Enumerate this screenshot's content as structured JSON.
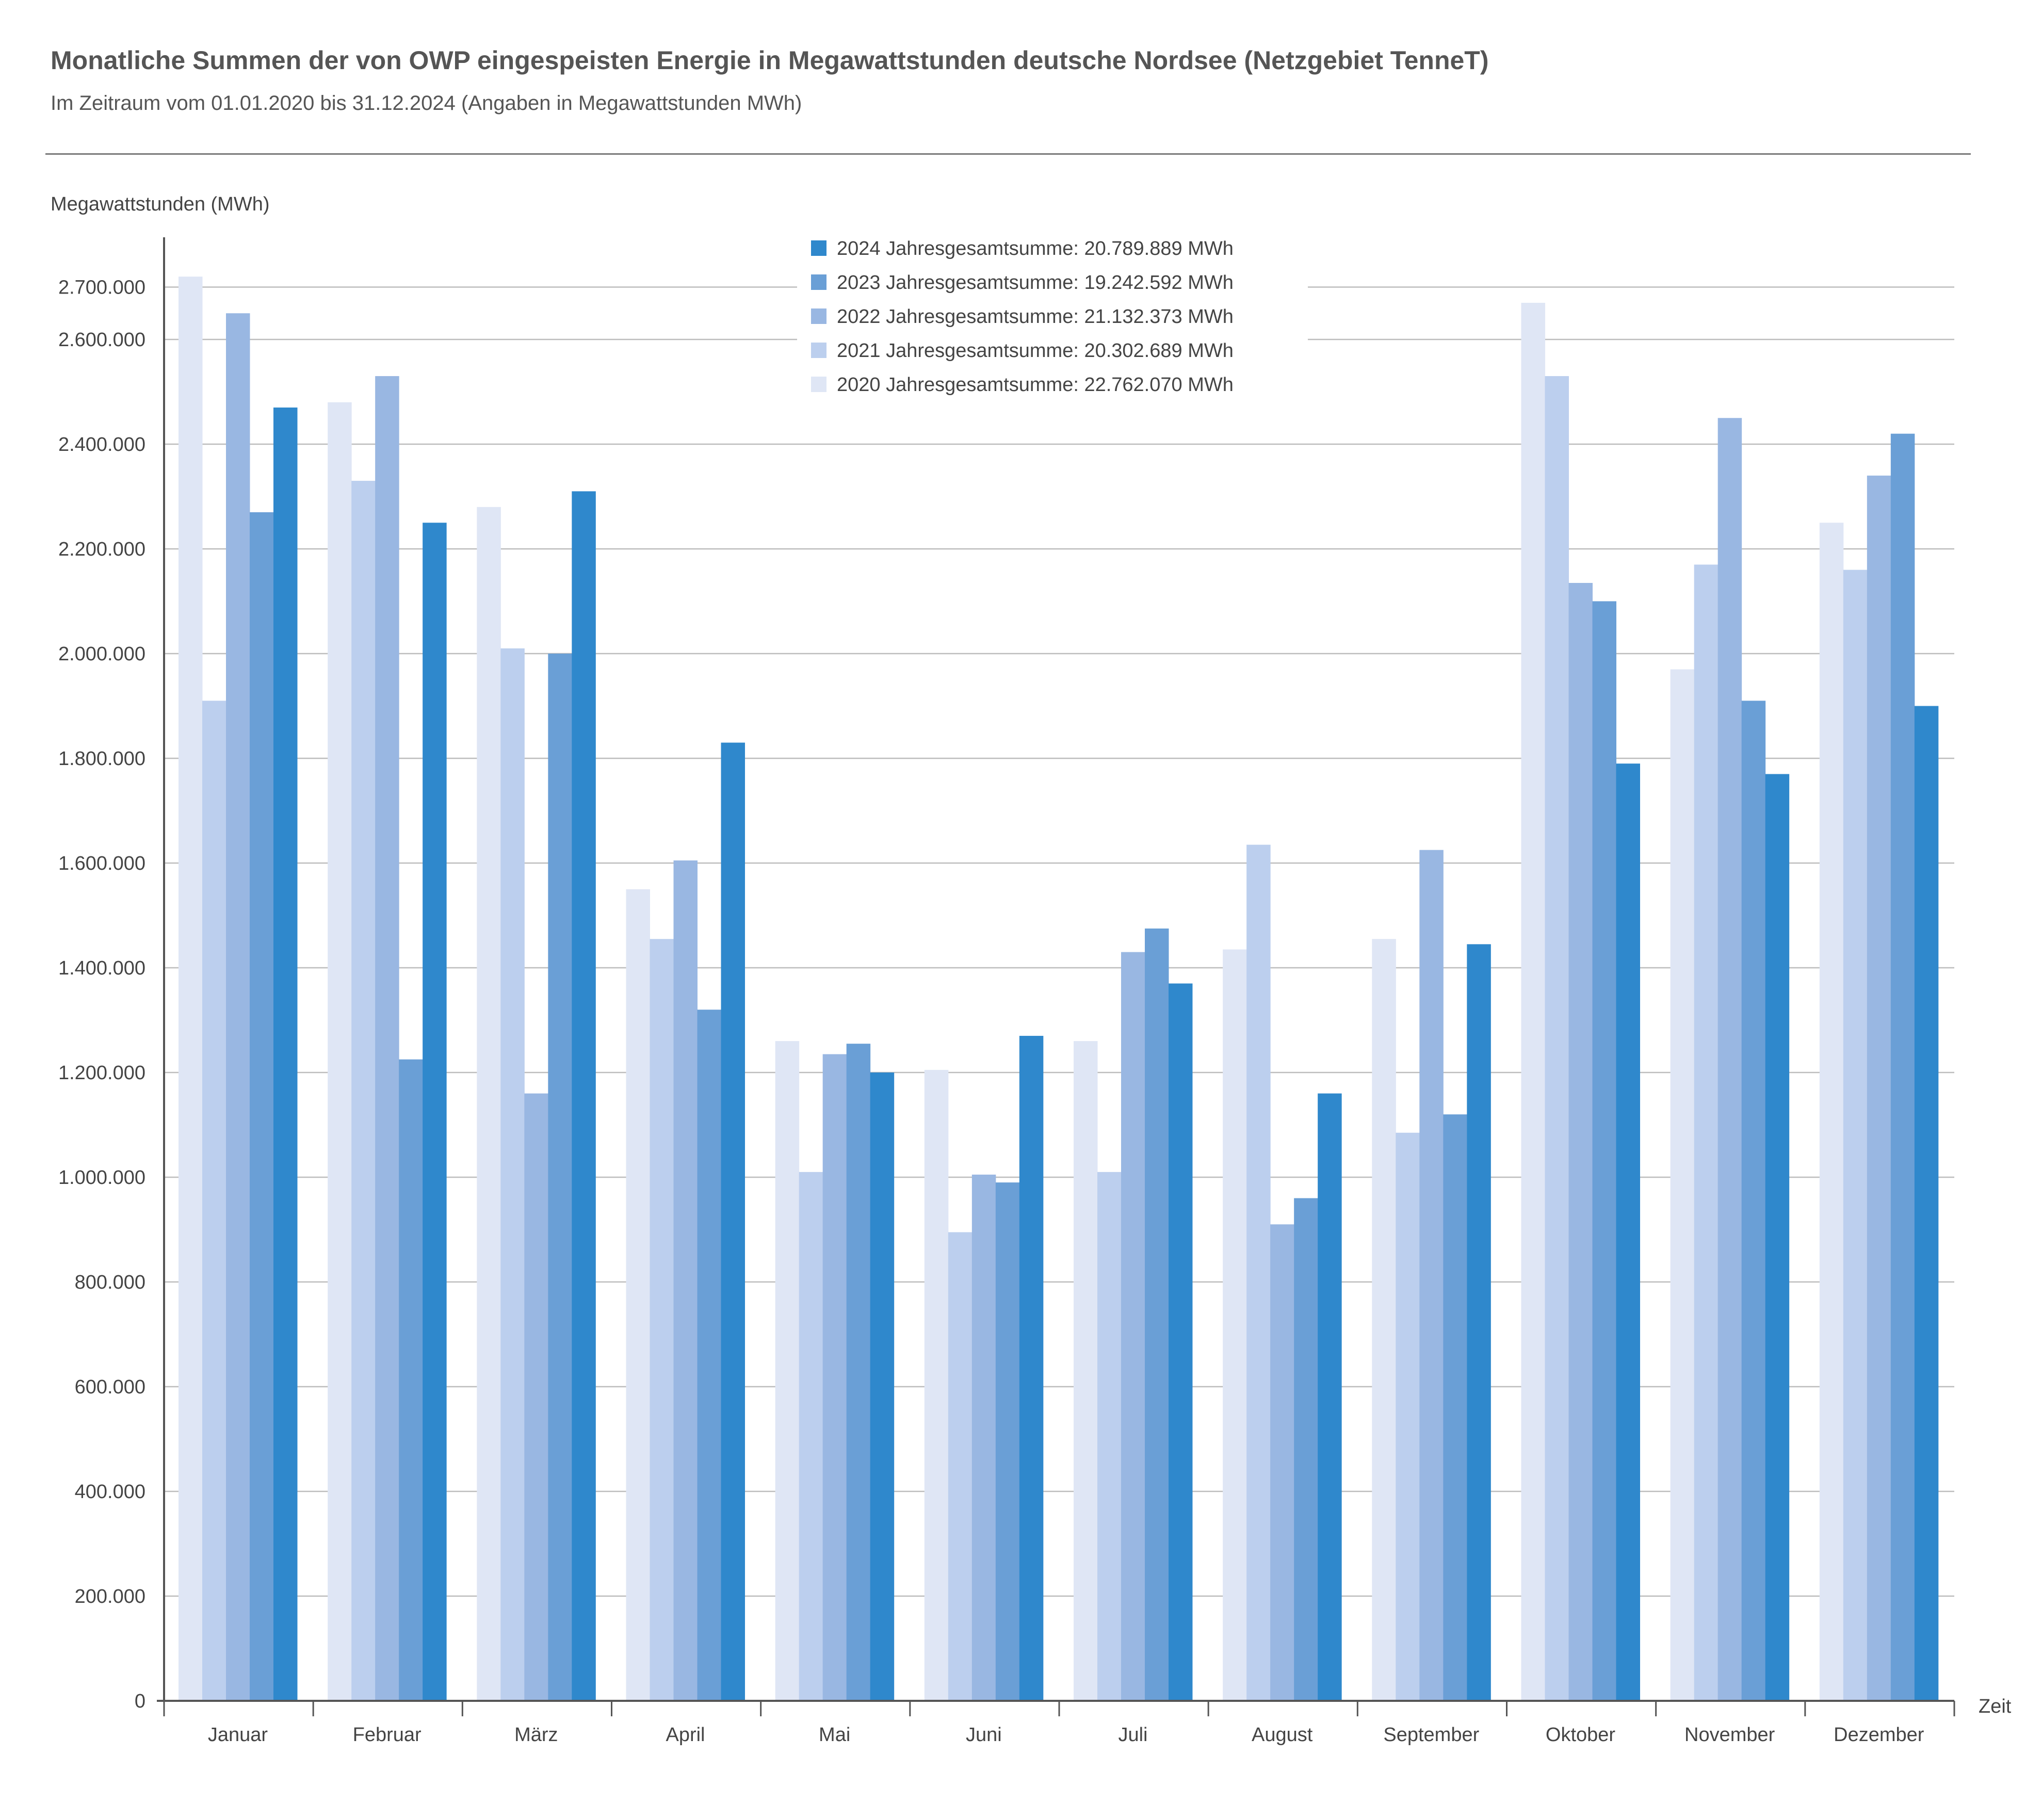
{
  "chart_data": {
    "type": "bar",
    "title": "Monatliche Summen der von OWP eingespeisten Energie in Megawattstunden deutsche Nordsee (Netzgebiet TenneT)",
    "subtitle": "Im Zeitraum vom 01.01.2020 bis 31.12.2024 (Angaben in Megawattstunden MWh)",
    "ylabel": "Megawattstunden (MWh)",
    "xlabel": "Zeit",
    "ylim": [
      0,
      2800000
    ],
    "yticks": [
      0,
      200000,
      400000,
      600000,
      800000,
      1000000,
      1200000,
      1400000,
      1600000,
      1800000,
      2000000,
      2200000,
      2400000,
      2600000,
      2700000
    ],
    "ytick_labels": [
      "0",
      "200.000",
      "400.000",
      "600.000",
      "800.000",
      "1.000.000",
      "1.200.000",
      "1.400.000",
      "1.600.000",
      "1.800.000",
      "2.000.000",
      "2.200.000",
      "2.400.000",
      "2.600.000",
      "2.700.000"
    ],
    "grid": true,
    "legend_position": "top-center",
    "categories": [
      "Januar",
      "Februar",
      "März",
      "April",
      "Mai",
      "Juni",
      "Juli",
      "August",
      "September",
      "Oktober",
      "November",
      "Dezember"
    ],
    "series": [
      {
        "name": "2020",
        "legend": "2020 Jahresgesamtsumme: 22.762.070 MWh",
        "color": "#dfe6f5",
        "values": [
          2720000,
          2480000,
          2280000,
          1550000,
          1260000,
          1205000,
          1260000,
          1435000,
          1455000,
          2670000,
          1970000,
          2250000
        ]
      },
      {
        "name": "2021",
        "legend": "2021 Jahresgesamtsumme: 20.302.689 MWh",
        "color": "#bccfee",
        "values": [
          1910000,
          2330000,
          2010000,
          1455000,
          1010000,
          895000,
          1010000,
          1635000,
          1085000,
          2530000,
          2170000,
          2160000
        ]
      },
      {
        "name": "2022",
        "legend": "2022 Jahresgesamtsumme: 21.132.373 MWh",
        "color": "#99b7e2",
        "values": [
          2650000,
          2530000,
          1160000,
          1605000,
          1235000,
          1005000,
          1430000,
          910000,
          1625000,
          2135000,
          2450000,
          2340000
        ]
      },
      {
        "name": "2023",
        "legend": "2023 Jahresgesamtsumme: 19.242.592 MWh",
        "color": "#6a9fd6",
        "values": [
          2270000,
          1225000,
          2000000,
          1320000,
          1255000,
          990000,
          1475000,
          960000,
          1120000,
          2100000,
          1910000,
          2420000
        ]
      },
      {
        "name": "2024",
        "legend": "2024 Jahresgesamtsumme: 20.789.889 MWh",
        "color": "#2f88cc",
        "values": [
          2470000,
          2250000,
          2310000,
          1830000,
          1200000,
          1270000,
          1370000,
          1160000,
          1445000,
          1790000,
          1770000,
          1900000
        ]
      }
    ],
    "legend_order": [
      "2024",
      "2023",
      "2022",
      "2021",
      "2020"
    ]
  }
}
